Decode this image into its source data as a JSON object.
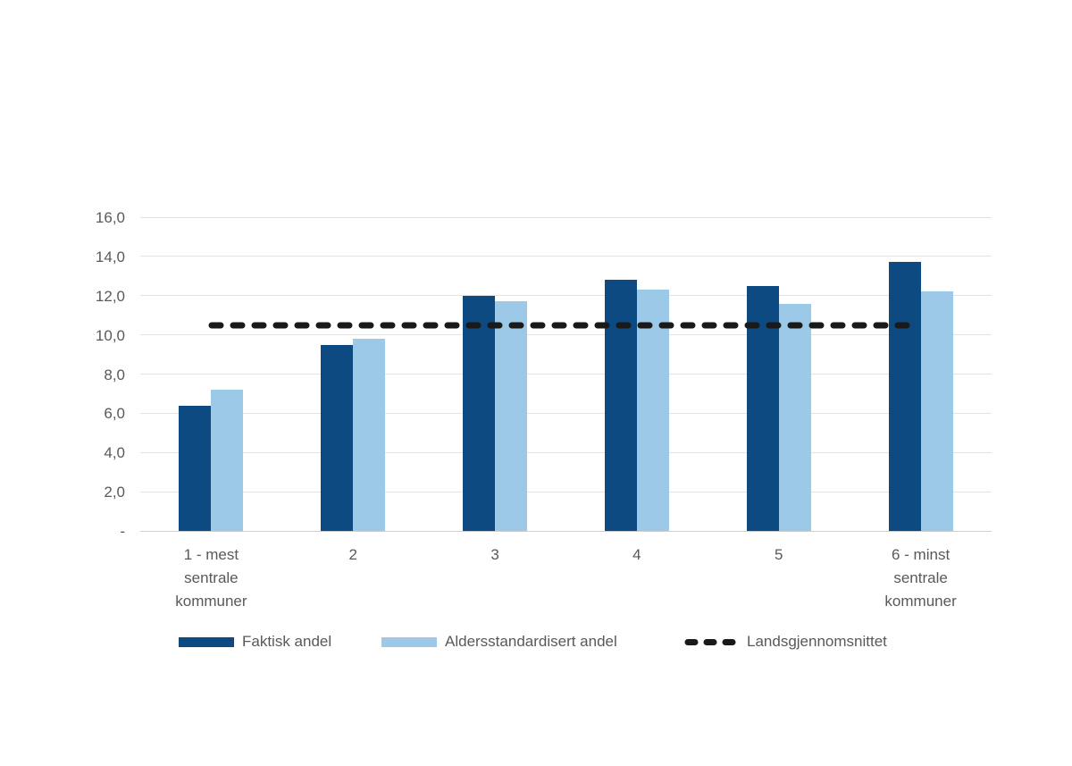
{
  "chart_data": {
    "type": "bar",
    "title": "",
    "xlabel": "",
    "ylabel": "",
    "categories": [
      "1 - mest\nsentrale\nkommuner",
      "2",
      "3",
      "4",
      "5",
      "6 - minst\nsentrale\nkommuner"
    ],
    "series": [
      {
        "name": "Faktisk andel",
        "color": "#0e4a82",
        "values": [
          6.4,
          9.5,
          12.0,
          12.8,
          12.5,
          13.7
        ]
      },
      {
        "name": "Aldersstandardisert andel",
        "color": "#9dc9e9",
        "values": [
          7.2,
          9.8,
          11.7,
          12.3,
          11.6,
          12.2
        ]
      }
    ],
    "reference_line": {
      "name": "Landsgjennomsnittet",
      "value": 10.5,
      "color": "#1a1a1a",
      "style": "dashed"
    },
    "ylim": [
      0,
      16
    ],
    "yticks": [
      {
        "label": "-",
        "value": 0
      },
      {
        "label": "2,0",
        "value": 2
      },
      {
        "label": "4,0",
        "value": 4
      },
      {
        "label": "6,0",
        "value": 6
      },
      {
        "label": "8,0",
        "value": 8
      },
      {
        "label": "10,0",
        "value": 10
      },
      {
        "label": "12,0",
        "value": 12
      },
      {
        "label": "14,0",
        "value": 14
      },
      {
        "label": "16,0",
        "value": 16
      }
    ],
    "grid": true,
    "legend_position": "bottom"
  },
  "colors": {
    "gridline": "#e2e2e2",
    "axis": "#cfcfcf",
    "text": "#595959",
    "background": "#ffffff"
  }
}
